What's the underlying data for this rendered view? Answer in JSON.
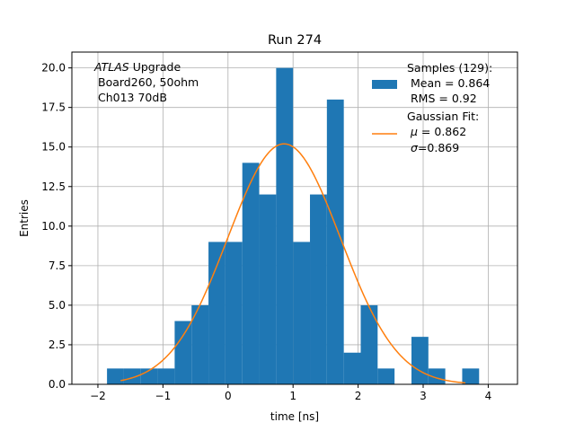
{
  "chart_data": {
    "type": "bar",
    "title": "Run 274",
    "xlabel": "time [ns]",
    "ylabel": "Entries",
    "xlim": [
      -2.4,
      4.45
    ],
    "ylim": [
      0,
      21
    ],
    "xticks": [
      -2,
      -1,
      0,
      1,
      2,
      3,
      4
    ],
    "xtick_labels": [
      "−2",
      "−1",
      "0",
      "1",
      "2",
      "3",
      "4"
    ],
    "yticks": [
      0,
      2.5,
      5,
      7.5,
      10,
      12.5,
      15,
      17.5,
      20
    ],
    "ytick_labels": [
      "0.0",
      "2.5",
      "5.0",
      "7.5",
      "10.0",
      "12.5",
      "15.0",
      "17.5",
      "20.0"
    ],
    "grid": true,
    "histogram": {
      "bin_edges": [
        -1.86,
        -1.6,
        -1.34,
        -1.08,
        -0.82,
        -0.56,
        -0.3,
        -0.04,
        0.22,
        0.48,
        0.74,
        1.0,
        1.26,
        1.52,
        1.78,
        2.04,
        2.3,
        2.56,
        2.82,
        3.08,
        3.34,
        3.6,
        3.86
      ],
      "counts": [
        1,
        1,
        1,
        1,
        4,
        5,
        9,
        9,
        14,
        12,
        20,
        9,
        12,
        18,
        2,
        5,
        1,
        0,
        3,
        1,
        0,
        1
      ],
      "color": "#1f77b4"
    },
    "gaussian_fit": {
      "amplitude": 15.2,
      "mu": 0.862,
      "sigma": 0.869,
      "x_range": [
        -1.65,
        3.65
      ],
      "color": "#ff7f0e"
    },
    "annotation": {
      "line1_italic": "ATLAS",
      "line1_rest": " Upgrade",
      "line2": "Board260, 50ohm",
      "line3": "Ch013 70dB"
    },
    "legend": {
      "position": "top-right",
      "samples_title": "Samples (129):",
      "samples_mean": "Mean = 0.864",
      "samples_rms": "RMS = 0.92",
      "fit_title": "Gaussian Fit:",
      "fit_mu_symbol": "μ",
      "fit_mu_value": " = 0.862",
      "fit_sigma_symbol": "σ",
      "fit_sigma_value": "=0.869"
    }
  }
}
